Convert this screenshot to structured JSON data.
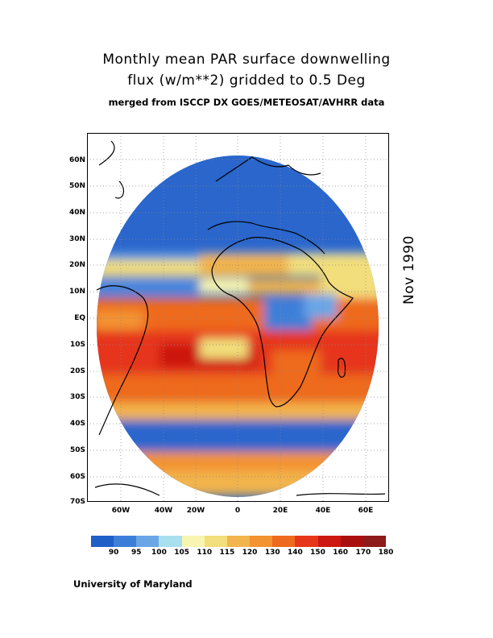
{
  "title": {
    "line1": "Monthly mean PAR surface downwelling",
    "line2": "flux (w/m**2) gridded to 0.5 Deg",
    "subtitle": "merged from ISCCP DX GOES/METEOSAT/AVHRR data"
  },
  "date_label": "Nov 1990",
  "footer": "University of Maryland",
  "map": {
    "projection": "lat-lon",
    "lon_range": [
      -70,
      70
    ],
    "lat_range": [
      -70,
      70
    ],
    "lat_ticks": [
      "60N",
      "50N",
      "40N",
      "30N",
      "20N",
      "10N",
      "EQ",
      "10S",
      "20S",
      "30S",
      "40S",
      "50S",
      "60S",
      "70S"
    ],
    "lon_ticks": [
      "60W",
      "40W",
      "20W",
      "0",
      "20E",
      "40E",
      "60E"
    ],
    "grid": "dotted"
  },
  "colorbar": {
    "colors": [
      "#1f5fc8",
      "#3d7fd8",
      "#6aa6e6",
      "#a9e0f0",
      "#f7f5b0",
      "#f2de7a",
      "#f2b44c",
      "#f39331",
      "#ee6a1e",
      "#e6361a",
      "#cc1810",
      "#aa0f0f",
      "#8e1a1a"
    ],
    "labels": [
      "90",
      "95",
      "100",
      "105",
      "110",
      "115",
      "120",
      "130",
      "140",
      "150",
      "160",
      "170",
      "180"
    ]
  }
}
